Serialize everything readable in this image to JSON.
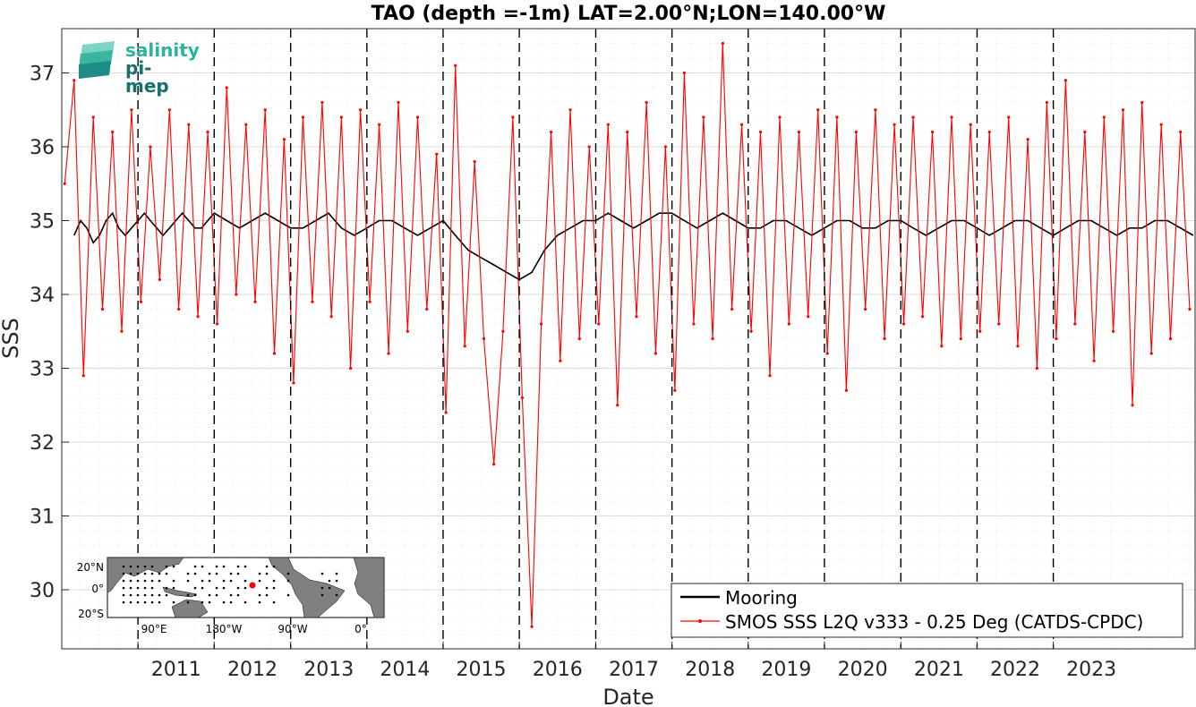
{
  "chart_data": {
    "type": "line",
    "title": "TAO (depth =-1m) LAT=2.00°N;LON=140.00°W",
    "xlabel": "Date",
    "ylabel": "SSS",
    "x_range": [
      "2010-01-01",
      "2024-11-10"
    ],
    "ylim": [
      29.2,
      37.6
    ],
    "y_ticks": [
      30,
      31,
      32,
      33,
      34,
      35,
      36,
      37
    ],
    "x_ticks": [
      "2011",
      "2012",
      "2013",
      "2014",
      "2015",
      "2016",
      "2017",
      "2018",
      "2019",
      "2020",
      "2021",
      "2022",
      "2023"
    ],
    "year_boundaries": [
      "2011-01-01",
      "2012-01-01",
      "2013-01-01",
      "2014-01-01",
      "2015-01-01",
      "2016-01-01",
      "2017-01-01",
      "2018-01-01",
      "2019-01-01",
      "2020-01-01",
      "2021-01-01",
      "2022-01-01",
      "2023-01-01"
    ],
    "grid": "minor dotted",
    "legend_position": "bottom-right",
    "series": [
      {
        "name": "Mooring",
        "color": "#000000",
        "x": [
          "2010-03-01",
          "2010-04-01",
          "2010-05-01",
          "2010-06-01",
          "2010-07-01",
          "2010-08-01",
          "2010-09-01",
          "2010-10-01",
          "2010-11-01",
          "2010-12-01",
          "2011-01-01",
          "2011-02-01",
          "2011-03-01",
          "2011-04-01",
          "2011-05-01",
          "2011-06-01",
          "2011-07-01",
          "2011-08-01",
          "2011-09-01",
          "2011-10-01",
          "2011-11-01",
          "2011-12-01",
          "2012-01-01",
          "2012-03-01",
          "2012-05-01",
          "2012-07-01",
          "2012-09-01",
          "2012-11-01",
          "2013-01-01",
          "2013-03-01",
          "2013-05-01",
          "2013-07-01",
          "2013-09-01",
          "2013-11-01",
          "2014-01-01",
          "2014-03-01",
          "2014-05-01",
          "2014-07-01",
          "2014-09-01",
          "2014-11-01",
          "2015-01-01",
          "2015-03-01",
          "2015-05-01",
          "2015-07-01",
          "2015-09-01",
          "2015-11-01",
          "2016-01-01",
          "2016-03-01",
          "2016-05-01",
          "2016-07-01",
          "2016-09-01",
          "2016-11-01",
          "2017-01-01",
          "2017-03-01",
          "2017-05-01",
          "2017-07-01",
          "2017-09-01",
          "2017-11-01",
          "2018-01-01",
          "2018-03-01",
          "2018-05-01",
          "2018-07-01",
          "2018-09-01",
          "2018-11-01",
          "2019-01-01",
          "2019-03-01",
          "2019-05-01",
          "2019-07-01",
          "2019-09-01",
          "2019-11-01",
          "2020-01-01",
          "2020-03-01",
          "2020-05-01",
          "2020-07-01",
          "2020-09-01",
          "2020-11-01",
          "2021-01-01",
          "2021-03-01",
          "2021-05-01",
          "2021-07-01",
          "2021-09-01",
          "2021-11-01",
          "2022-01-01",
          "2022-03-01",
          "2022-05-01",
          "2022-07-01",
          "2022-09-01",
          "2022-11-01",
          "2023-01-01",
          "2023-03-01",
          "2023-05-01",
          "2023-07-01",
          "2023-09-01",
          "2023-11-01",
          "2024-01-01",
          "2024-03-01",
          "2024-05-01",
          "2024-07-01",
          "2024-09-01",
          "2024-11-01"
        ],
        "values": [
          34.8,
          35.0,
          34.9,
          34.7,
          34.8,
          35.0,
          35.1,
          34.9,
          34.8,
          34.9,
          35.0,
          35.1,
          35.0,
          34.9,
          34.8,
          34.9,
          35.0,
          35.1,
          35.0,
          34.9,
          34.9,
          35.0,
          35.1,
          35.0,
          34.9,
          35.0,
          35.1,
          35.0,
          34.9,
          34.9,
          35.0,
          35.1,
          34.9,
          34.8,
          34.9,
          35.0,
          35.0,
          34.9,
          34.8,
          34.9,
          35.0,
          34.8,
          34.6,
          34.5,
          34.4,
          34.3,
          34.2,
          34.3,
          34.6,
          34.8,
          34.9,
          35.0,
          35.0,
          35.1,
          35.0,
          34.9,
          35.0,
          35.1,
          35.1,
          35.0,
          34.9,
          35.0,
          35.1,
          35.0,
          34.9,
          34.9,
          35.0,
          35.0,
          34.9,
          34.8,
          34.9,
          35.0,
          35.0,
          34.9,
          34.9,
          35.0,
          35.0,
          34.9,
          34.8,
          34.9,
          35.0,
          35.0,
          34.9,
          34.8,
          34.9,
          35.0,
          35.0,
          34.9,
          34.8,
          34.9,
          35.0,
          35.0,
          34.9,
          34.8,
          34.9,
          34.9,
          35.0,
          35.0,
          34.9,
          34.8
        ]
      },
      {
        "name": "SMOS SSS L2Q v333 - 0.25 Deg (CATDS-CPDC)",
        "color": "#ff0000",
        "x": [
          "2010-01-15",
          "2010-03-01",
          "2010-04-15",
          "2010-06-01",
          "2010-07-15",
          "2010-09-01",
          "2010-10-15",
          "2010-12-01",
          "2011-01-15",
          "2011-03-01",
          "2011-04-15",
          "2011-06-01",
          "2011-07-15",
          "2011-09-01",
          "2011-10-15",
          "2011-12-01",
          "2012-01-15",
          "2012-03-01",
          "2012-04-15",
          "2012-06-01",
          "2012-07-15",
          "2012-09-01",
          "2012-10-15",
          "2012-12-01",
          "2013-01-15",
          "2013-03-01",
          "2013-04-15",
          "2013-06-01",
          "2013-07-15",
          "2013-09-01",
          "2013-10-15",
          "2013-12-01",
          "2014-01-15",
          "2014-03-01",
          "2014-04-15",
          "2014-06-01",
          "2014-07-15",
          "2014-09-01",
          "2014-10-15",
          "2014-12-01",
          "2015-01-15",
          "2015-03-01",
          "2015-04-15",
          "2015-06-01",
          "2015-07-15",
          "2015-09-01",
          "2015-10-15",
          "2015-12-01",
          "2016-01-15",
          "2016-03-01",
          "2016-04-15",
          "2016-06-01",
          "2016-07-15",
          "2016-09-01",
          "2016-10-15",
          "2016-12-01",
          "2017-01-15",
          "2017-03-01",
          "2017-04-15",
          "2017-06-01",
          "2017-07-15",
          "2017-09-01",
          "2017-10-15",
          "2017-12-01",
          "2018-01-15",
          "2018-03-01",
          "2018-04-15",
          "2018-06-01",
          "2018-07-15",
          "2018-09-01",
          "2018-10-15",
          "2018-12-01",
          "2019-01-15",
          "2019-03-01",
          "2019-04-15",
          "2019-06-01",
          "2019-07-15",
          "2019-09-01",
          "2019-10-15",
          "2019-12-01",
          "2020-01-15",
          "2020-03-01",
          "2020-04-15",
          "2020-06-01",
          "2020-07-15",
          "2020-09-01",
          "2020-10-15",
          "2020-12-01",
          "2021-01-15",
          "2021-03-01",
          "2021-04-15",
          "2021-06-01",
          "2021-07-15",
          "2021-09-01",
          "2021-10-15",
          "2021-12-01",
          "2022-01-15",
          "2022-03-01",
          "2022-04-15",
          "2022-06-01",
          "2022-07-15",
          "2022-09-01",
          "2022-10-15",
          "2022-12-01",
          "2023-01-15",
          "2023-03-01",
          "2023-04-15",
          "2023-06-01",
          "2023-07-15",
          "2023-09-01",
          "2023-10-15",
          "2023-12-01",
          "2024-01-15",
          "2024-03-01",
          "2024-04-15",
          "2024-06-01",
          "2024-07-15",
          "2024-09-01",
          "2024-10-15"
        ],
        "values": [
          35.5,
          36.9,
          32.9,
          36.4,
          33.8,
          36.2,
          33.5,
          36.5,
          33.9,
          36.0,
          34.2,
          36.5,
          33.8,
          36.3,
          33.7,
          36.2,
          33.6,
          36.8,
          34.0,
          36.3,
          33.9,
          36.5,
          33.2,
          36.1,
          32.8,
          36.4,
          33.9,
          36.6,
          33.7,
          36.4,
          33.0,
          36.5,
          33.9,
          36.3,
          33.2,
          36.6,
          33.5,
          36.4,
          33.8,
          35.9,
          32.4,
          37.1,
          33.3,
          35.8,
          33.4,
          31.7,
          33.5,
          36.4,
          32.6,
          29.5,
          33.6,
          36.2,
          33.1,
          36.5,
          33.4,
          36.0,
          33.6,
          36.3,
          32.5,
          36.2,
          33.7,
          36.6,
          33.2,
          36.0,
          32.7,
          37.0,
          33.6,
          36.4,
          33.4,
          37.4,
          33.8,
          36.3,
          33.5,
          36.2,
          32.9,
          36.4,
          33.6,
          36.2,
          33.7,
          36.5,
          33.2,
          36.4,
          32.7,
          36.2,
          33.8,
          36.5,
          33.4,
          36.3,
          33.6,
          36.4,
          33.7,
          36.2,
          33.3,
          36.4,
          33.4,
          36.3,
          33.5,
          36.2,
          33.6,
          36.4,
          33.3,
          36.1,
          33.0,
          36.6,
          33.4,
          36.9,
          33.6,
          36.2,
          33.1,
          36.4,
          33.5,
          36.5,
          32.5,
          36.6,
          33.2,
          36.3,
          33.4,
          36.2,
          33.8
        ]
      }
    ],
    "inset_map": {
      "y_tick_labels": [
        "20°N",
        "0°",
        "20°S"
      ],
      "x_tick_labels": [
        "90°E",
        "180°W",
        "90°W",
        "0°"
      ]
    }
  },
  "logo": {
    "line1": "salinity",
    "line2": "pi-mep"
  },
  "colors": {
    "mooring": "#000000",
    "smos": "#ff0000",
    "land": "#7f7f7f",
    "ocean": "#ffffff",
    "logo_teal": "#2bb3a0",
    "logo_dark": "#17706d"
  }
}
